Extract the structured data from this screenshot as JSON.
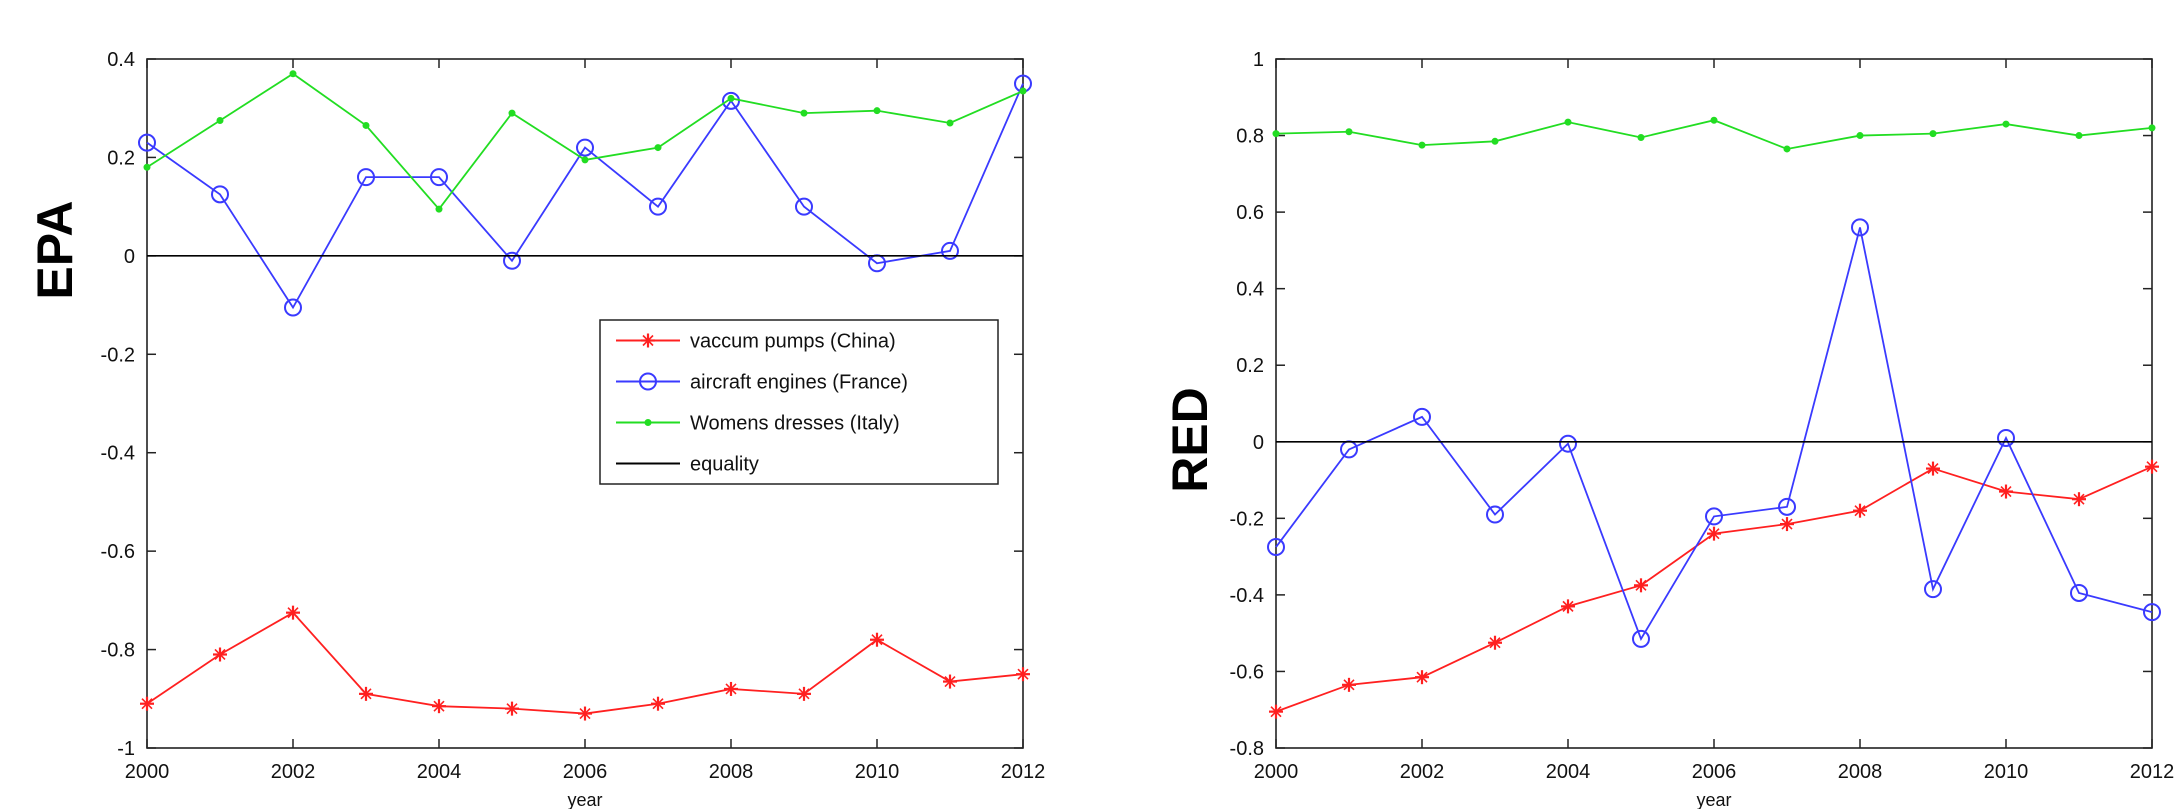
{
  "chart_data": [
    {
      "type": "line",
      "ylabel": "EPA",
      "xlabel": "year",
      "xlim": [
        2000,
        2012
      ],
      "ylim": [
        -1,
        0.4
      ],
      "xticks": [
        2000,
        2002,
        2004,
        2006,
        2008,
        2010,
        2012
      ],
      "yticks": [
        -1,
        -0.8,
        -0.6,
        -0.4,
        -0.2,
        0,
        0.2,
        0.4
      ],
      "ytick_labels": [
        "-1",
        "-0.8",
        "-0.6",
        "-0.4",
        "-0.2",
        "0",
        "0.2",
        "0.4"
      ],
      "legend_position": "middle-right",
      "x": [
        2000,
        2001,
        2002,
        2003,
        2004,
        2005,
        2006,
        2007,
        2008,
        2009,
        2010,
        2011,
        2012
      ],
      "series": [
        {
          "name": "vaccum pumps (China)",
          "color": "#ff2020",
          "marker": "star",
          "values": [
            -0.91,
            -0.81,
            -0.725,
            -0.89,
            -0.915,
            -0.92,
            -0.93,
            -0.91,
            -0.88,
            -0.89,
            -0.78,
            -0.865,
            -0.85
          ]
        },
        {
          "name": "aircraft engines (France)",
          "color": "#3a3aff",
          "marker": "circle",
          "values": [
            0.23,
            0.125,
            -0.105,
            0.16,
            0.16,
            -0.01,
            0.22,
            0.1,
            0.315,
            0.1,
            -0.015,
            0.01,
            0.35
          ]
        },
        {
          "name": "Womens dresses (Italy)",
          "color": "#22dd22",
          "marker": "dot",
          "values": [
            0.18,
            0.275,
            0.37,
            0.265,
            0.095,
            0.29,
            0.195,
            0.22,
            0.32,
            0.29,
            0.295,
            0.27,
            0.335
          ]
        },
        {
          "name": "equality",
          "color": "#000000",
          "marker": "none",
          "values": [
            0,
            0,
            0,
            0,
            0,
            0,
            0,
            0,
            0,
            0,
            0,
            0,
            0
          ]
        }
      ]
    },
    {
      "type": "line",
      "ylabel": "RED",
      "xlabel": "year",
      "xlim": [
        2000,
        2012
      ],
      "ylim": [
        -0.8,
        1
      ],
      "xticks": [
        2000,
        2002,
        2004,
        2006,
        2008,
        2010,
        2012
      ],
      "yticks": [
        -0.8,
        -0.6,
        -0.4,
        -0.2,
        0,
        0.2,
        0.4,
        0.6,
        0.8,
        1
      ],
      "ytick_labels": [
        "-0.8",
        "-0.6",
        "-0.4",
        "-0.2",
        "0",
        "0.2",
        "0.4",
        "0.6",
        "0.8",
        "1"
      ],
      "x": [
        2000,
        2001,
        2002,
        2003,
        2004,
        2005,
        2006,
        2007,
        2008,
        2009,
        2010,
        2011,
        2012
      ],
      "series": [
        {
          "color": "#ff2020",
          "marker": "star",
          "values": [
            -0.705,
            -0.635,
            -0.615,
            -0.525,
            -0.43,
            -0.375,
            -0.24,
            -0.215,
            -0.18,
            -0.07,
            -0.13,
            -0.15,
            -0.065
          ]
        },
        {
          "color": "#3a3aff",
          "marker": "circle",
          "values": [
            -0.275,
            -0.02,
            0.065,
            -0.19,
            -0.005,
            -0.515,
            -0.195,
            -0.17,
            0.56,
            -0.385,
            0.01,
            -0.395,
            -0.445
          ]
        },
        {
          "color": "#22dd22",
          "marker": "dot",
          "values": [
            0.805,
            0.81,
            0.775,
            0.785,
            0.835,
            0.795,
            0.84,
            0.765,
            0.8,
            0.805,
            0.83,
            0.8,
            0.82
          ]
        },
        {
          "color": "#000000",
          "marker": "none",
          "values": [
            0,
            0,
            0,
            0,
            0,
            0,
            0,
            0,
            0,
            0,
            0,
            0,
            0
          ]
        }
      ]
    }
  ]
}
